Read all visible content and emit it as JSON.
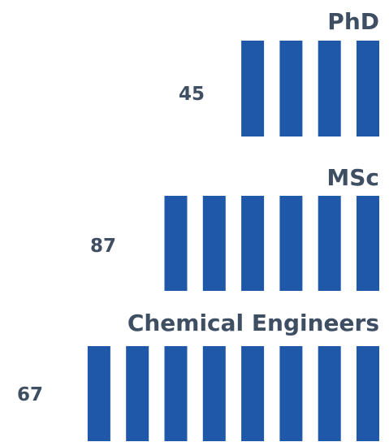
{
  "chart_data": {
    "type": "pictograph",
    "bar_color": "#1f58a9",
    "text_color": "#3f4f63",
    "rows": [
      {
        "label": "PhD",
        "value": 45,
        "icons": 4
      },
      {
        "label": "MSc",
        "value": 87,
        "icons": 6
      },
      {
        "label": "Chemical Engineers",
        "value": 67,
        "icons": 8
      }
    ]
  }
}
